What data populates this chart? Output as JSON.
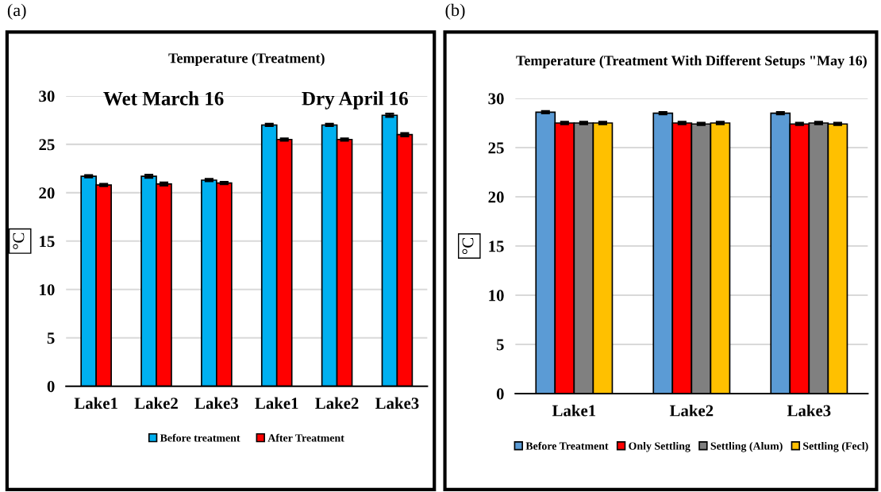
{
  "chart_data": [
    {
      "type": "bar",
      "title": "Temperature (Treatment)",
      "ylabel": "°C",
      "categories": [
        "Lake1",
        "Lake2",
        "Lake3",
        "Lake1",
        "Lake2",
        "Lake3"
      ],
      "ylim": [
        0,
        30
      ],
      "yticks": [
        0,
        5,
        10,
        15,
        20,
        25,
        30
      ],
      "grid": "y",
      "legend": "bottom",
      "annotations": [
        "(a)",
        "Wet March 16",
        "Dry April 16"
      ],
      "series": [
        {
          "name": "Before treatment",
          "color": "#00b0f0",
          "values": [
            21.7,
            21.7,
            21.3,
            27.0,
            27.0,
            28.0
          ],
          "errors": [
            0.1,
            0.15,
            0.1,
            0.1,
            0.1,
            0.15
          ]
        },
        {
          "name": "After Treatment",
          "color": "#ff0000",
          "values": [
            20.8,
            20.9,
            21.0,
            25.5,
            25.5,
            26.0
          ],
          "errors": [
            0.1,
            0.15,
            0.1,
            0.1,
            0.1,
            0.15
          ]
        }
      ]
    },
    {
      "type": "bar",
      "title": "Temperature (Treatment With Different Setups \"May 16)",
      "ylabel": "°C",
      "categories": [
        "Lake1",
        "Lake2",
        "Lake3"
      ],
      "ylim": [
        0,
        30
      ],
      "yticks": [
        0,
        5,
        10,
        15,
        20,
        25,
        30
      ],
      "grid": "y",
      "legend": "bottom",
      "annotations": [
        "(b)"
      ],
      "series": [
        {
          "name": "Before Treatment",
          "color": "#5b9bd5",
          "values": [
            28.6,
            28.5,
            28.5
          ],
          "errors": [
            0.1,
            0.1,
            0.1
          ]
        },
        {
          "name": "Only Settling",
          "color": "#ff0000",
          "values": [
            27.5,
            27.5,
            27.4
          ],
          "errors": [
            0.1,
            0.1,
            0.1
          ]
        },
        {
          "name": "Settling (Alum)",
          "color": "#808080",
          "values": [
            27.5,
            27.4,
            27.5
          ],
          "errors": [
            0.1,
            0.1,
            0.1
          ]
        },
        {
          "name": "Settling (Fecl)",
          "color": "#ffc000",
          "values": [
            27.5,
            27.5,
            27.4
          ],
          "errors": [
            0.1,
            0.1,
            0.1
          ]
        }
      ]
    }
  ]
}
